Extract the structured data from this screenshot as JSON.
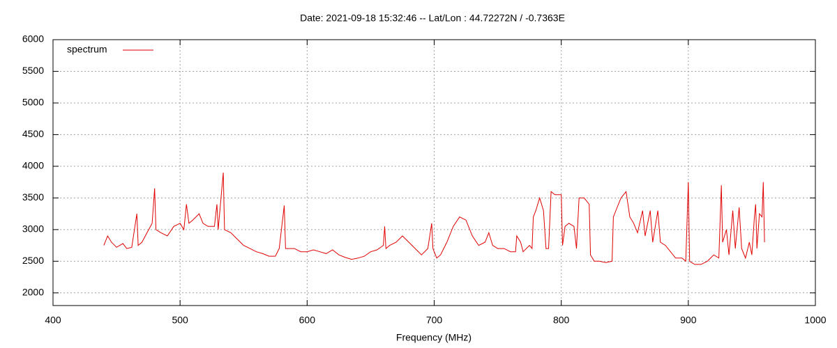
{
  "chart_data": {
    "type": "line",
    "title": "Date: 2021-09-18 15:32:46  --  Lat/Lon : 44.72272N / -0.7363E",
    "x_label": "Frequency (MHz)",
    "xlim": [
      400,
      1000
    ],
    "xticks": [
      400,
      500,
      600,
      700,
      800,
      900,
      1000
    ],
    "ylim": [
      1800,
      6000
    ],
    "yticks": [
      2000,
      2500,
      3000,
      3500,
      4000,
      4500,
      5000,
      5500,
      6000
    ],
    "grid": true,
    "legend": "top-left",
    "x": [
      440,
      443,
      446,
      450,
      455,
      458,
      462,
      466,
      467,
      470,
      474,
      478,
      480,
      481,
      485,
      490,
      495,
      500,
      503,
      505,
      507,
      510,
      515,
      518,
      522,
      527,
      529,
      530,
      534,
      535,
      540,
      545,
      550,
      555,
      560,
      565,
      570,
      575,
      578,
      582,
      583,
      590,
      595,
      600,
      605,
      610,
      615,
      620,
      625,
      630,
      635,
      640,
      645,
      650,
      655,
      660,
      661,
      662,
      665,
      670,
      675,
      680,
      685,
      690,
      695,
      698,
      699,
      702,
      705,
      710,
      715,
      720,
      725,
      730,
      735,
      740,
      743,
      746,
      750,
      755,
      760,
      764,
      765,
      768,
      770,
      775,
      777,
      778,
      780,
      783,
      786,
      788,
      790,
      792,
      795,
      800,
      801,
      803,
      806,
      810,
      812,
      814,
      818,
      822,
      823,
      826,
      830,
      835,
      840,
      841,
      844,
      847,
      851,
      854,
      857,
      860,
      864,
      866,
      870,
      872,
      876,
      878,
      882,
      886,
      890,
      895,
      898,
      900,
      901,
      905,
      910,
      915,
      920,
      924,
      926,
      927,
      930,
      932,
      935,
      937,
      940,
      942,
      945,
      948,
      950,
      952,
      953,
      954,
      956,
      958,
      959,
      960
    ],
    "series": [
      {
        "name": "spectrum",
        "color": "#e00000",
        "values": [
          2750,
          2900,
          2800,
          2720,
          2780,
          2700,
          2720,
          3250,
          2750,
          2800,
          2950,
          3100,
          3650,
          3000,
          2950,
          2900,
          3050,
          3100,
          3000,
          3400,
          3100,
          3150,
          3250,
          3100,
          3050,
          3050,
          3400,
          3000,
          3900,
          3000,
          2950,
          2850,
          2750,
          2700,
          2650,
          2620,
          2580,
          2580,
          2700,
          3380,
          2700,
          2700,
          2650,
          2650,
          2680,
          2650,
          2620,
          2680,
          2600,
          2560,
          2530,
          2550,
          2580,
          2650,
          2680,
          2750,
          3050,
          2700,
          2750,
          2800,
          2900,
          2800,
          2700,
          2600,
          2700,
          3100,
          2700,
          2550,
          2600,
          2800,
          3050,
          3200,
          3150,
          2900,
          2750,
          2800,
          2950,
          2750,
          2700,
          2700,
          2650,
          2650,
          2900,
          2800,
          2650,
          2750,
          2700,
          3200,
          3300,
          3500,
          3300,
          2700,
          2700,
          3600,
          3550,
          3550,
          2750,
          3050,
          3100,
          3050,
          2700,
          3500,
          3500,
          3400,
          2600,
          2500,
          2500,
          2480,
          2500,
          3200,
          3350,
          3500,
          3600,
          3200,
          3100,
          2950,
          3300,
          2900,
          3300,
          2800,
          3300,
          2800,
          2750,
          2650,
          2550,
          2550,
          2500,
          3750,
          2500,
          2450,
          2450,
          2500,
          2600,
          2550,
          3700,
          2800,
          3000,
          2600,
          3300,
          2700,
          3350,
          2700,
          2550,
          2800,
          2600,
          3200,
          3400,
          2700,
          3250,
          3200,
          3750,
          2800
        ]
      }
    ]
  }
}
